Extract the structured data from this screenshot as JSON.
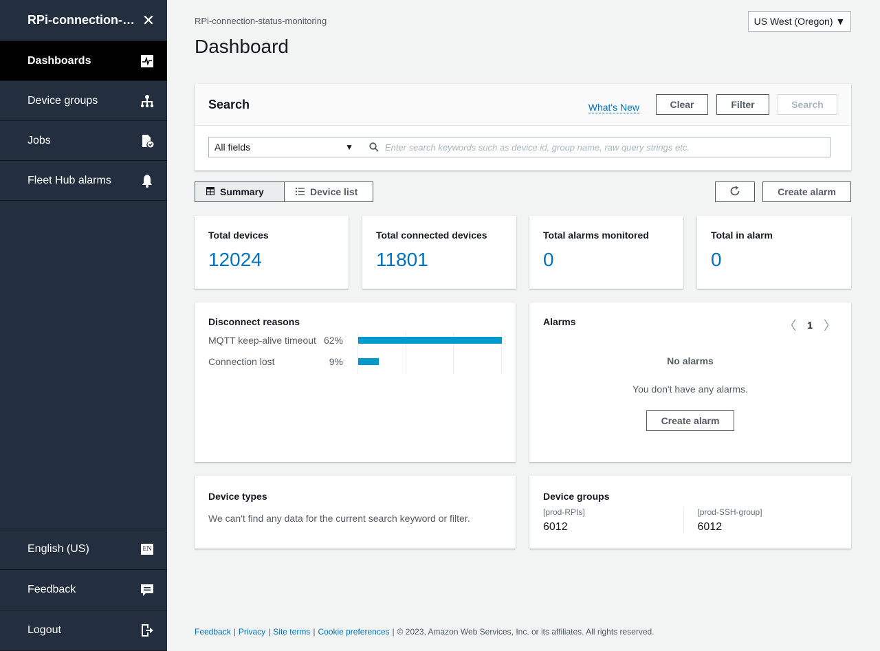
{
  "sidebar": {
    "title": "RPi-connection-s...",
    "items": [
      {
        "label": "Dashboards",
        "icon": "dashboard-icon"
      },
      {
        "label": "Device groups",
        "icon": "hierarchy-icon"
      },
      {
        "label": "Jobs",
        "icon": "file-check-icon"
      },
      {
        "label": "Fleet Hub alarms",
        "icon": "bell-icon"
      }
    ],
    "bottom": [
      {
        "label": "English (US)",
        "icon_text": "EN"
      },
      {
        "label": "Feedback",
        "icon": "feedback-icon"
      },
      {
        "label": "Logout",
        "icon": "logout-icon"
      }
    ]
  },
  "header": {
    "breadcrumb": "RPi-connection-status-monitoring",
    "title": "Dashboard",
    "region": "US West (Oregon)"
  },
  "search": {
    "title": "Search",
    "whats_new": "What's New",
    "clear": "Clear",
    "filter": "Filter",
    "search": "Search",
    "field": "All fields",
    "placeholder": "Enter search keywords such as device id, group name, raw query strings etc."
  },
  "view_toggle": {
    "summary": "Summary",
    "device_list": "Device list"
  },
  "actions": {
    "create_alarm": "Create alarm"
  },
  "stats": [
    {
      "label": "Total devices",
      "value": "12024"
    },
    {
      "label": "Total connected devices",
      "value": "11801"
    },
    {
      "label": "Total alarms monitored",
      "value": "0"
    },
    {
      "label": "Total in alarm",
      "value": "0"
    }
  ],
  "disconnect_reasons": {
    "title": "Disconnect reasons",
    "rows": [
      {
        "label": "MQTT keep-alive timeout",
        "pct": "62%",
        "value": 62
      },
      {
        "label": "Connection lost",
        "pct": "9%",
        "value": 9
      }
    ],
    "max": 62
  },
  "alarms": {
    "title": "Alarms",
    "page": "1",
    "empty_title": "No alarms",
    "empty_desc": "You don't have any alarms.",
    "create_alarm": "Create alarm"
  },
  "device_types": {
    "title": "Device types",
    "message": "We can't find any data for the current search keyword or filter."
  },
  "device_groups": {
    "title": "Device groups",
    "groups": [
      {
        "name": "[prod-RPIs]",
        "value": "6012"
      },
      {
        "name": "[prod-SSH-group]",
        "value": "6012"
      }
    ]
  },
  "footer": {
    "links": [
      "Feedback",
      "Privacy",
      "Site terms",
      "Cookie preferences"
    ],
    "copyright": "© 2023, Amazon Web Services, Inc. or its affiliates. All rights reserved."
  },
  "colors": {
    "sidebar_bg": "#232f3e",
    "accent": "#0073bb",
    "bar": "#0099cc"
  }
}
